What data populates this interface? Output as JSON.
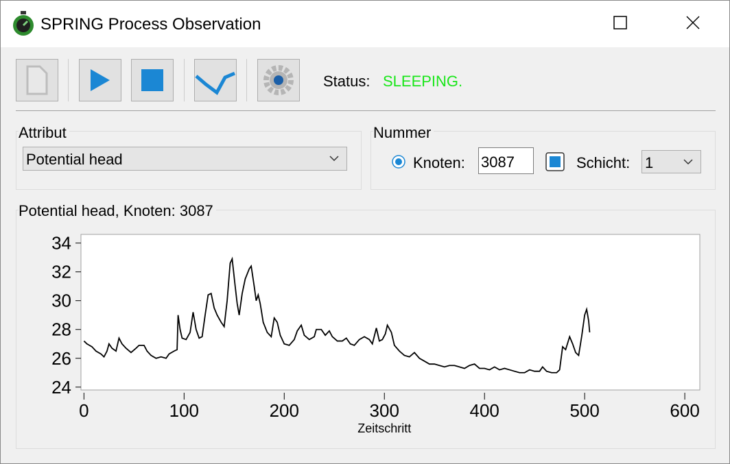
{
  "window": {
    "title": "SPRING Process Observation"
  },
  "toolbar": {
    "status_label": "Status:",
    "status_value": "SLEEPING."
  },
  "attribut": {
    "label": "Attribut",
    "selected": "Potential head"
  },
  "nummer": {
    "label": "Nummer",
    "knoten_label": "Knoten:",
    "knoten_value": "3087",
    "schicht_label": "Schicht:",
    "schicht_value": "1"
  },
  "chart_data": {
    "type": "line",
    "title": "Potential head, Knoten: 3087",
    "x_label": "Zeitschritt",
    "x": [
      0,
      3,
      8,
      12,
      17,
      20,
      23,
      25,
      28,
      32,
      35,
      38,
      42,
      47,
      52,
      55,
      60,
      63,
      67,
      72,
      77,
      82,
      85,
      90,
      93,
      94,
      96,
      98,
      102,
      106,
      109,
      112,
      115,
      118,
      121,
      124,
      127,
      130,
      133,
      137,
      140,
      143,
      146,
      148,
      151,
      153,
      155,
      158,
      161,
      165,
      167,
      170,
      172,
      174,
      176,
      179,
      183,
      187,
      190,
      193,
      196,
      200,
      205,
      210,
      213,
      217,
      220,
      225,
      230,
      232,
      237,
      241,
      245,
      248,
      253,
      258,
      262,
      266,
      270,
      275,
      280,
      285,
      288,
      292,
      295,
      298,
      301,
      303,
      307,
      310,
      315,
      320,
      325,
      330,
      335,
      340,
      345,
      350,
      355,
      360,
      365,
      370,
      375,
      380,
      385,
      390,
      395,
      400,
      405,
      410,
      415,
      420,
      425,
      430,
      435,
      440,
      445,
      450,
      455,
      458,
      462,
      467,
      472,
      475,
      478,
      481,
      485,
      488,
      491,
      494,
      497,
      500,
      502,
      504,
      505
    ],
    "series": [
      {
        "color": "#000000",
        "values": [
          27.2,
          27.0,
          26.8,
          26.5,
          26.3,
          26.1,
          26.5,
          27.0,
          26.7,
          26.5,
          27.4,
          27.0,
          26.7,
          26.4,
          26.7,
          26.9,
          26.9,
          26.5,
          26.2,
          26.0,
          26.1,
          26.0,
          26.3,
          26.5,
          26.6,
          29.0,
          28.0,
          27.4,
          27.3,
          27.8,
          29.2,
          28.0,
          27.4,
          27.5,
          29.0,
          30.4,
          30.5,
          29.5,
          29.0,
          28.5,
          28.2,
          30.0,
          32.6,
          32.9,
          31.0,
          29.8,
          29.0,
          30.5,
          31.5,
          32.2,
          32.4,
          31.0,
          30.0,
          30.4,
          29.8,
          28.5,
          27.8,
          27.5,
          28.8,
          28.5,
          27.6,
          27.0,
          26.9,
          27.3,
          27.9,
          28.3,
          27.6,
          27.3,
          27.5,
          28.0,
          28.0,
          27.6,
          27.9,
          27.5,
          27.2,
          27.2,
          27.4,
          27.0,
          26.9,
          27.3,
          27.5,
          27.3,
          27.0,
          28.1,
          27.2,
          27.3,
          27.7,
          28.3,
          27.8,
          26.9,
          26.5,
          26.2,
          26.1,
          26.4,
          26.0,
          25.8,
          25.6,
          25.6,
          25.5,
          25.4,
          25.5,
          25.5,
          25.4,
          25.3,
          25.5,
          25.6,
          25.3,
          25.3,
          25.2,
          25.4,
          25.2,
          25.3,
          25.2,
          25.1,
          25.0,
          25.0,
          25.2,
          25.1,
          25.1,
          25.4,
          25.1,
          25.0,
          25.0,
          25.2,
          26.8,
          26.6,
          27.5,
          27.0,
          26.4,
          26.2,
          27.5,
          29.0,
          29.4,
          28.6,
          27.8
        ]
      }
    ],
    "xlim": [
      -3,
      615
    ],
    "ylim": [
      23.8,
      34.6
    ],
    "xticks": [
      0,
      100,
      200,
      300,
      400,
      500,
      600
    ],
    "yticks": [
      24,
      26,
      28,
      30,
      32,
      34
    ]
  }
}
